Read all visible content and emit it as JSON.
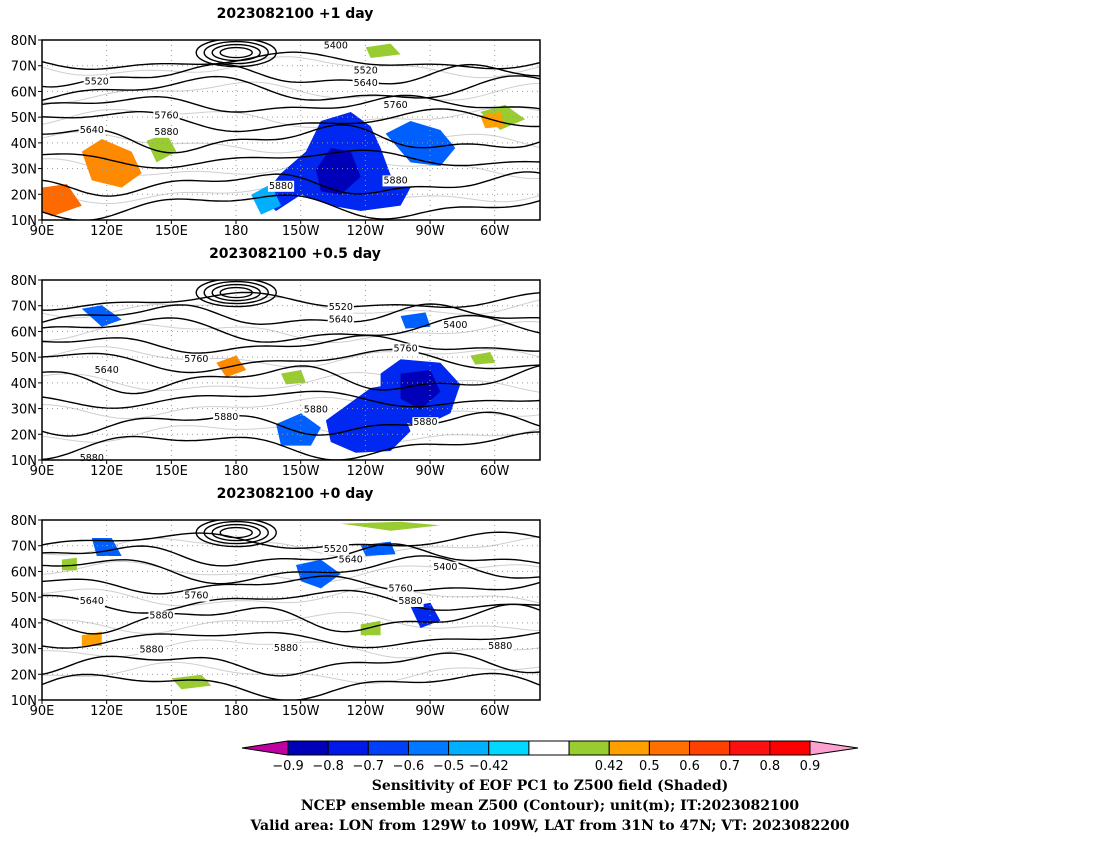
{
  "panels": [
    {
      "title": "2023082100  +1 day",
      "contour_labels": [
        "5400",
        "5520",
        "5640",
        "5760",
        "5880",
        "5520",
        "5640",
        "5760",
        "5880",
        "5880"
      ],
      "lat_labels": [
        "80N",
        "70N",
        "60N",
        "50N",
        "40N",
        "30N",
        "20N",
        "10N"
      ],
      "lon_labels": [
        "90E",
        "120E",
        "150E",
        "180",
        "150W",
        "120W",
        "90W",
        "60W"
      ]
    },
    {
      "title": "2023082100  +0.5 day",
      "contour_labels": [
        "5520",
        "5640",
        "5400",
        "5760",
        "5640",
        "5760",
        "5880",
        "5880",
        "5880",
        "5880"
      ],
      "lat_labels": [
        "80N",
        "70N",
        "60N",
        "50N",
        "40N",
        "30N",
        "20N",
        "10N"
      ],
      "lon_labels": [
        "90E",
        "120E",
        "150E",
        "180",
        "150W",
        "120W",
        "90W",
        "60W"
      ]
    },
    {
      "title": "2023082100  +0 day",
      "contour_labels": [
        "5520",
        "5640",
        "5400",
        "5640",
        "5760",
        "5760",
        "5880",
        "5880",
        "5880",
        "5880",
        "5880"
      ],
      "lat_labels": [
        "80N",
        "70N",
        "60N",
        "50N",
        "40N",
        "30N",
        "20N",
        "10N"
      ],
      "lon_labels": [
        "90E",
        "120E",
        "150E",
        "180",
        "150W",
        "120W",
        "90W",
        "60W"
      ]
    }
  ],
  "colorbar": {
    "labels": [
      "−0.9",
      "−0.8",
      "−0.7",
      "−0.6",
      "−0.5",
      "−0.42",
      "0.42",
      "0.5",
      "0.6",
      "0.7",
      "0.8",
      "0.9"
    ],
    "colors": [
      "#c000a0",
      "#0000b8",
      "#0018e8",
      "#0040f8",
      "#0078ff",
      "#00b0ff",
      "#00d8ff",
      "#ffffff",
      "#98cc30",
      "#ffa000",
      "#ff7000",
      "#ff4000",
      "#ff1010",
      "#ff0000",
      "#ffa0d0"
    ]
  },
  "footer": {
    "line1": "Sensitivity of EOF PC1 to Z500 field (Shaded)",
    "line2": "NCEP ensemble mean Z500 (Contour); unit(m); IT:2023082100",
    "line3": "Valid area: LON from 129W to 109W, LAT from 31N to 47N; VT: 2023082200"
  }
}
